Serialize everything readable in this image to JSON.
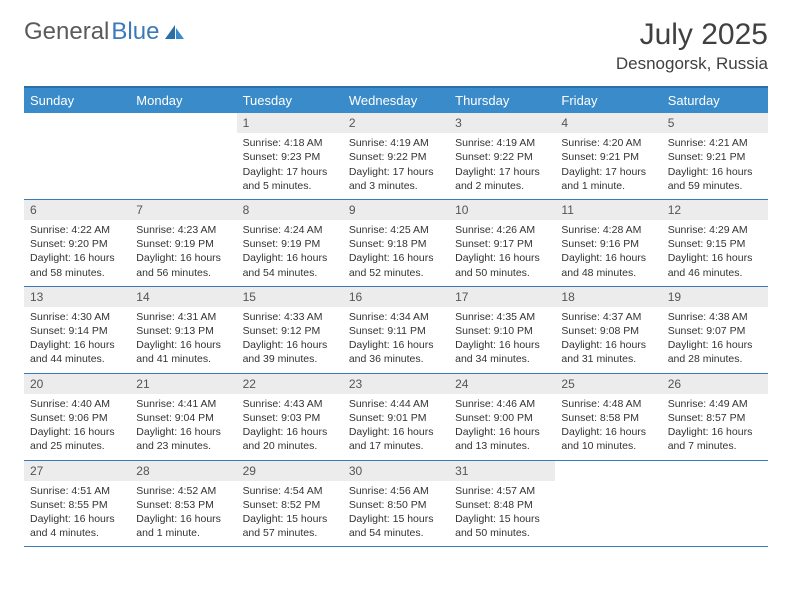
{
  "logo": {
    "text1": "General",
    "text2": "Blue"
  },
  "title": "July 2025",
  "location": "Desnogorsk, Russia",
  "colors": {
    "header_bar": "#3a8bc9",
    "header_border": "#2b6fa8",
    "week_border": "#3a7ab8",
    "daynum_bg": "#ececec",
    "text": "#333333",
    "logo_gray": "#5a5a5a",
    "logo_blue": "#3a7ab8"
  },
  "weekdays": [
    "Sunday",
    "Monday",
    "Tuesday",
    "Wednesday",
    "Thursday",
    "Friday",
    "Saturday"
  ],
  "weeks": [
    [
      {
        "blank": true
      },
      {
        "blank": true
      },
      {
        "n": "1",
        "sunrise": "4:18 AM",
        "sunset": "9:23 PM",
        "daylight": "17 hours and 5 minutes."
      },
      {
        "n": "2",
        "sunrise": "4:19 AM",
        "sunset": "9:22 PM",
        "daylight": "17 hours and 3 minutes."
      },
      {
        "n": "3",
        "sunrise": "4:19 AM",
        "sunset": "9:22 PM",
        "daylight": "17 hours and 2 minutes."
      },
      {
        "n": "4",
        "sunrise": "4:20 AM",
        "sunset": "9:21 PM",
        "daylight": "17 hours and 1 minute."
      },
      {
        "n": "5",
        "sunrise": "4:21 AM",
        "sunset": "9:21 PM",
        "daylight": "16 hours and 59 minutes."
      }
    ],
    [
      {
        "n": "6",
        "sunrise": "4:22 AM",
        "sunset": "9:20 PM",
        "daylight": "16 hours and 58 minutes."
      },
      {
        "n": "7",
        "sunrise": "4:23 AM",
        "sunset": "9:19 PM",
        "daylight": "16 hours and 56 minutes."
      },
      {
        "n": "8",
        "sunrise": "4:24 AM",
        "sunset": "9:19 PM",
        "daylight": "16 hours and 54 minutes."
      },
      {
        "n": "9",
        "sunrise": "4:25 AM",
        "sunset": "9:18 PM",
        "daylight": "16 hours and 52 minutes."
      },
      {
        "n": "10",
        "sunrise": "4:26 AM",
        "sunset": "9:17 PM",
        "daylight": "16 hours and 50 minutes."
      },
      {
        "n": "11",
        "sunrise": "4:28 AM",
        "sunset": "9:16 PM",
        "daylight": "16 hours and 48 minutes."
      },
      {
        "n": "12",
        "sunrise": "4:29 AM",
        "sunset": "9:15 PM",
        "daylight": "16 hours and 46 minutes."
      }
    ],
    [
      {
        "n": "13",
        "sunrise": "4:30 AM",
        "sunset": "9:14 PM",
        "daylight": "16 hours and 44 minutes."
      },
      {
        "n": "14",
        "sunrise": "4:31 AM",
        "sunset": "9:13 PM",
        "daylight": "16 hours and 41 minutes."
      },
      {
        "n": "15",
        "sunrise": "4:33 AM",
        "sunset": "9:12 PM",
        "daylight": "16 hours and 39 minutes."
      },
      {
        "n": "16",
        "sunrise": "4:34 AM",
        "sunset": "9:11 PM",
        "daylight": "16 hours and 36 minutes."
      },
      {
        "n": "17",
        "sunrise": "4:35 AM",
        "sunset": "9:10 PM",
        "daylight": "16 hours and 34 minutes."
      },
      {
        "n": "18",
        "sunrise": "4:37 AM",
        "sunset": "9:08 PM",
        "daylight": "16 hours and 31 minutes."
      },
      {
        "n": "19",
        "sunrise": "4:38 AM",
        "sunset": "9:07 PM",
        "daylight": "16 hours and 28 minutes."
      }
    ],
    [
      {
        "n": "20",
        "sunrise": "4:40 AM",
        "sunset": "9:06 PM",
        "daylight": "16 hours and 25 minutes."
      },
      {
        "n": "21",
        "sunrise": "4:41 AM",
        "sunset": "9:04 PM",
        "daylight": "16 hours and 23 minutes."
      },
      {
        "n": "22",
        "sunrise": "4:43 AM",
        "sunset": "9:03 PM",
        "daylight": "16 hours and 20 minutes."
      },
      {
        "n": "23",
        "sunrise": "4:44 AM",
        "sunset": "9:01 PM",
        "daylight": "16 hours and 17 minutes."
      },
      {
        "n": "24",
        "sunrise": "4:46 AM",
        "sunset": "9:00 PM",
        "daylight": "16 hours and 13 minutes."
      },
      {
        "n": "25",
        "sunrise": "4:48 AM",
        "sunset": "8:58 PM",
        "daylight": "16 hours and 10 minutes."
      },
      {
        "n": "26",
        "sunrise": "4:49 AM",
        "sunset": "8:57 PM",
        "daylight": "16 hours and 7 minutes."
      }
    ],
    [
      {
        "n": "27",
        "sunrise": "4:51 AM",
        "sunset": "8:55 PM",
        "daylight": "16 hours and 4 minutes."
      },
      {
        "n": "28",
        "sunrise": "4:52 AM",
        "sunset": "8:53 PM",
        "daylight": "16 hours and 1 minute."
      },
      {
        "n": "29",
        "sunrise": "4:54 AM",
        "sunset": "8:52 PM",
        "daylight": "15 hours and 57 minutes."
      },
      {
        "n": "30",
        "sunrise": "4:56 AM",
        "sunset": "8:50 PM",
        "daylight": "15 hours and 54 minutes."
      },
      {
        "n": "31",
        "sunrise": "4:57 AM",
        "sunset": "8:48 PM",
        "daylight": "15 hours and 50 minutes."
      },
      {
        "blank": true
      },
      {
        "blank": true
      }
    ]
  ],
  "labels": {
    "sunrise": "Sunrise: ",
    "sunset": "Sunset: ",
    "daylight": "Daylight: "
  }
}
